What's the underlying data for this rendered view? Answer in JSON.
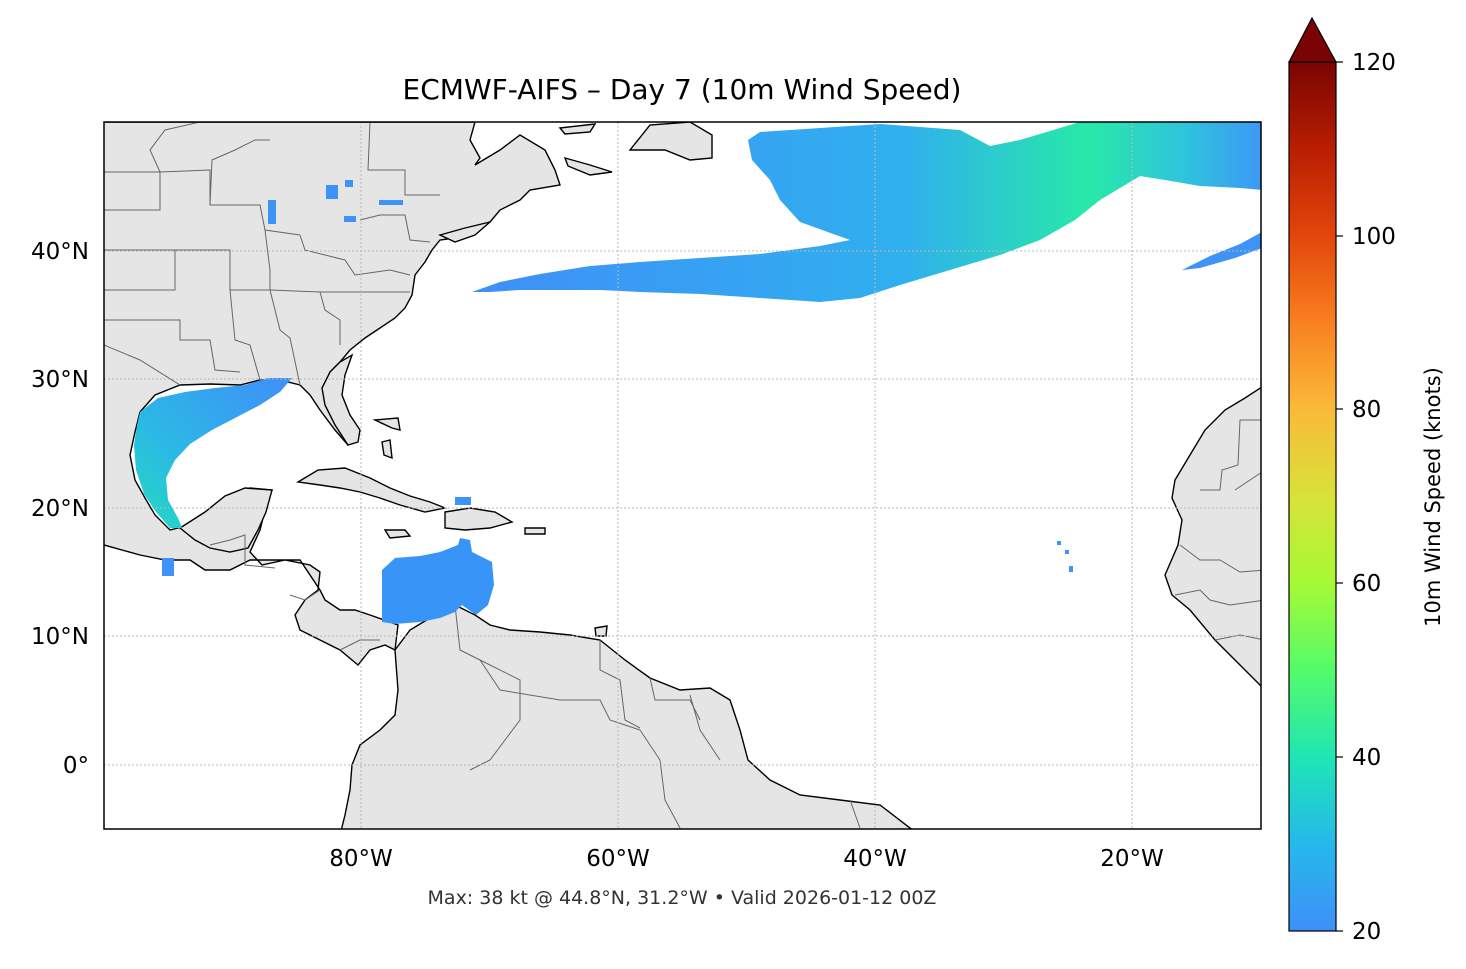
{
  "title": "ECMWF-AIFS – Day 7 (10m Wind Speed)",
  "footer": "Max: 38 kt @ 44.8°N, 31.2°W • Valid 2026-01-12 00Z",
  "map": {
    "lon_range": [
      -100,
      -10
    ],
    "lat_range": [
      -5,
      50
    ],
    "lon_ticks": [
      {
        "value": -80,
        "label": "80°W"
      },
      {
        "value": -60,
        "label": "60°W"
      },
      {
        "value": -40,
        "label": "40°W"
      },
      {
        "value": -20,
        "label": "20°W"
      }
    ],
    "lat_ticks": [
      {
        "value": 40,
        "label": "40°N"
      },
      {
        "value": 30,
        "label": "30°N"
      },
      {
        "value": 20,
        "label": "20°N"
      },
      {
        "value": 10,
        "label": "10°N"
      },
      {
        "value": 0,
        "label": "0°"
      }
    ],
    "land_color": "#e5e5e5",
    "ocean_color": "#ffffff",
    "gridlines": true
  },
  "colorbar": {
    "label": "10m Wind Speed (knots)",
    "range": [
      20,
      120
    ],
    "ticks": [
      "20",
      "40",
      "60",
      "80",
      "100",
      "120"
    ],
    "colormap": "turbo",
    "extend": "max"
  },
  "wind_features": [
    {
      "name": "north-atlantic-jet",
      "peak_kt": 38
    },
    {
      "name": "gulf-of-mexico",
      "peak_kt": 33
    },
    {
      "name": "caribbean-sea",
      "peak_kt": 24
    }
  ]
}
